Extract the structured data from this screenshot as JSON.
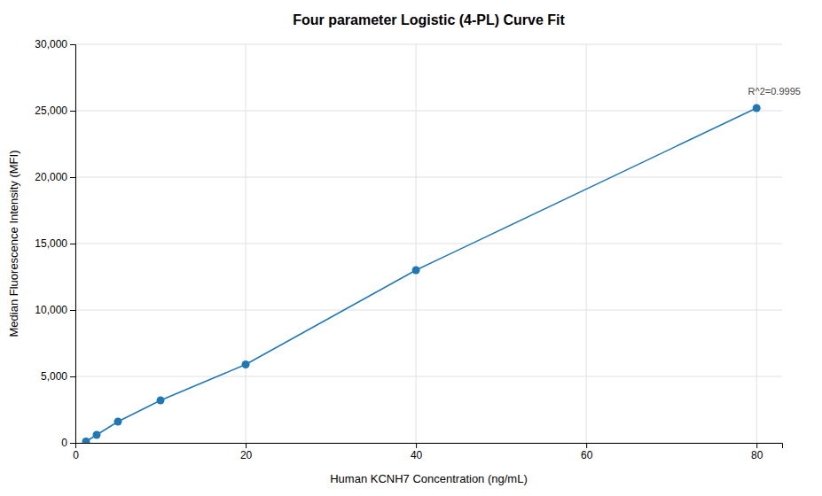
{
  "chart_data": {
    "type": "line",
    "title": "Four parameter Logistic (4-PL) Curve Fit",
    "x_label": "Human KCNH7 Concentration (ng/mL)",
    "y_label": "Median Fluorescence Intensity (MFI)",
    "x": [
      1.25,
      2.5,
      5,
      10,
      20,
      40,
      80
    ],
    "values": [
      100,
      600,
      1600,
      3200,
      5900,
      13000,
      25200
    ],
    "marker": "circle",
    "xlim": [
      0,
      83
    ],
    "ylim": [
      0,
      30000
    ],
    "xticks": [
      0,
      20,
      40,
      60,
      80
    ],
    "yticks": [
      0,
      {
        "value": 5000,
        "label": "5,000"
      },
      {
        "value": 10000,
        "label": "10,000"
      },
      {
        "value": 15000,
        "label": "15,000"
      },
      {
        "value": 20000,
        "label": "20,000"
      },
      {
        "value": 25000,
        "label": "25,000"
      },
      {
        "value": 30000,
        "label": "30,000"
      }
    ],
    "annotations": [
      {
        "text": "R^2=0.9995",
        "x": 79,
        "y": 26200
      }
    ],
    "grid": true
  }
}
